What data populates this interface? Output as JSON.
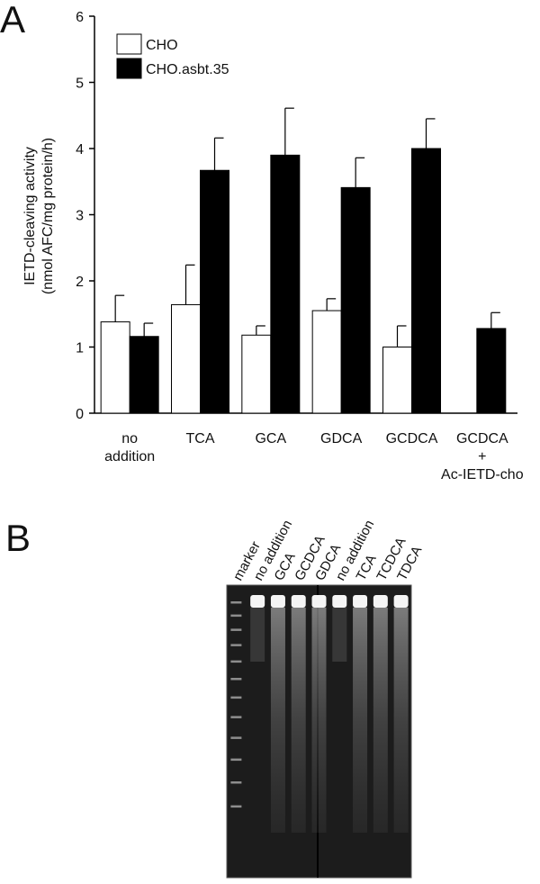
{
  "panel_labels": [
    "A",
    "B"
  ],
  "chart_data": {
    "type": "bar",
    "ylabel": [
      "IETD-cleaving  activity",
      "(nmol AFC/mg protein/h)"
    ],
    "categories": [
      "no addition",
      "TCA",
      "GCA",
      "GDCA",
      "GCDCA",
      "GCDCA + Ac-IETD-cho"
    ],
    "series": [
      {
        "name": "CHO",
        "color": "#ffffff",
        "values": [
          1.38,
          1.64,
          1.18,
          1.55,
          1.0,
          null
        ],
        "errors": [
          0.4,
          0.6,
          0.14,
          0.18,
          0.32,
          null
        ]
      },
      {
        "name": "CHO.asbt.35",
        "color": "#000000",
        "values": [
          1.16,
          3.67,
          3.9,
          3.41,
          4.0,
          1.28
        ],
        "errors": [
          0.2,
          0.49,
          0.71,
          0.45,
          0.45,
          0.24
        ]
      }
    ],
    "ylim": [
      0,
      6
    ],
    "yticks": [
      0,
      1,
      2,
      3,
      4,
      5,
      6
    ],
    "legend": "upper left"
  },
  "gel": {
    "lanes": [
      "marker",
      "no addition",
      "GCA",
      "GCDCA",
      "GDCA",
      "no addition",
      "TCA",
      "TCDCA",
      "TDCA"
    ]
  }
}
